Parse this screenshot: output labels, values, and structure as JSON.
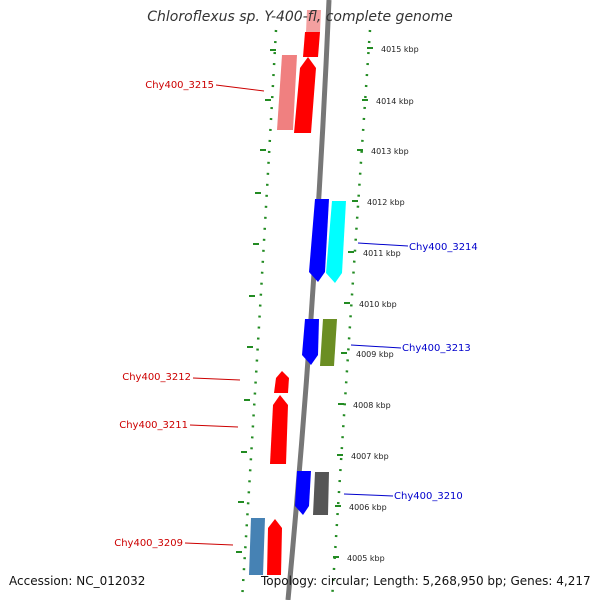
{
  "title": "Chloroflexus sp. Y-400-fl, complete genome",
  "footer": {
    "accession": "Accession: NC_012032",
    "topology": "Topology: circular; Length: 5,268,950 bp; Genes: 4,217"
  },
  "ticks": [
    "4015 kbp",
    "4014 kbp",
    "4013 kbp",
    "4012 kbp",
    "4011 kbp",
    "4010 kbp",
    "4009 kbp",
    "4008 kbp",
    "4007 kbp",
    "4006 kbp",
    "4005 kbp"
  ],
  "genes": [
    {
      "label": "Chy400_3215",
      "color": "#cc0000"
    },
    {
      "label": "Chy400_3214",
      "color": "#0000cc"
    },
    {
      "label": "Chy400_3213",
      "color": "#0000cc"
    },
    {
      "label": "Chy400_3212",
      "color": "#cc0000"
    },
    {
      "label": "Chy400_3211",
      "color": "#cc0000"
    },
    {
      "label": "Chy400_3210",
      "color": "#0000cc"
    },
    {
      "label": "Chy400_3209",
      "color": "#cc0000"
    }
  ],
  "colors": {
    "backbone": "#777777",
    "dotted_track": "#228b22",
    "cds_red": "#ff0000",
    "cds_blue": "#0000ff",
    "cds_cyan": "#00ffff",
    "cds_olive": "#6b8e23",
    "cds_gray": "#555555",
    "cds_lightred": "#f08080",
    "cds_steelblue": "#4682b4"
  }
}
